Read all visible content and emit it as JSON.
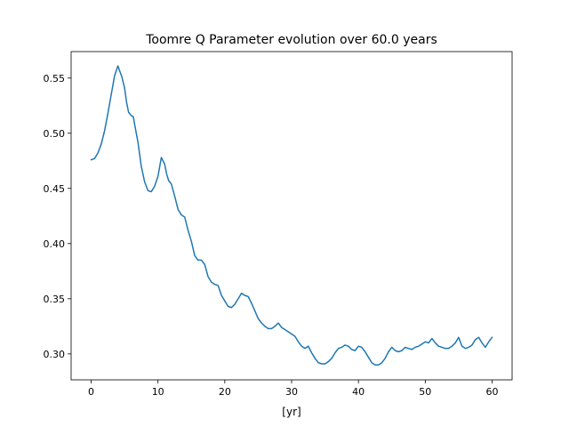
{
  "chart_data": {
    "type": "line",
    "title": "Toomre Q Parameter evolution over 60.0 years",
    "xlabel": "[yr]",
    "ylabel": "",
    "xlim": [
      -3.0,
      63.0
    ],
    "ylim": [
      0.2765,
      0.574
    ],
    "xticks": [
      0,
      10,
      20,
      30,
      40,
      50,
      60
    ],
    "yticks": [
      0.3,
      0.35,
      0.4,
      0.45,
      0.5,
      0.55
    ],
    "xtick_labels": [
      "0",
      "10",
      "20",
      "30",
      "40",
      "50",
      "60"
    ],
    "ytick_labels": [
      "0.30",
      "0.35",
      "0.40",
      "0.45",
      "0.50",
      "0.55"
    ],
    "grid": false,
    "legend": "none",
    "series_color": "#1f77b4",
    "series": [
      {
        "x": [
          0,
          0.5,
          1.0,
          1.5,
          2.0,
          2.5,
          3.0,
          3.5,
          4.0,
          4.3,
          4.6,
          5.0,
          5.3,
          5.6,
          6.0,
          6.3,
          6.6,
          7.0,
          7.5,
          8.0,
          8.5,
          9.0,
          9.5,
          10.0,
          10.5,
          11.0,
          11.3,
          11.6,
          12.0,
          12.5,
          13.0,
          13.5,
          14.0,
          14.5,
          15.0,
          15.5,
          16.0,
          16.5,
          17.0,
          17.5,
          18.0,
          18.5,
          19.0,
          19.5,
          20.0,
          20.5,
          21.0,
          21.5,
          22.0,
          22.5,
          23.0,
          23.5,
          24.0,
          24.5,
          25.0,
          25.5,
          26.0,
          26.5,
          27.0,
          27.5,
          28.0,
          28.5,
          29.0,
          29.5,
          30.0,
          30.5,
          31.0,
          31.5,
          32.0,
          32.5,
          33.0,
          33.5,
          34.0,
          34.5,
          35.0,
          35.5,
          36.0,
          36.5,
          37.0,
          37.5,
          38.0,
          38.5,
          39.0,
          39.5,
          40.0,
          40.5,
          41.0,
          41.5,
          42.0,
          42.5,
          43.0,
          43.5,
          44.0,
          44.5,
          45.0,
          45.5,
          46.0,
          46.5,
          47.0,
          47.5,
          48.0,
          48.5,
          49.0,
          49.5,
          50.0,
          50.5,
          51.0,
          51.5,
          52.0,
          52.5,
          53.0,
          53.5,
          54.0,
          54.5,
          55.0,
          55.5,
          56.0,
          56.5,
          57.0,
          57.5,
          58.0,
          58.5,
          59.0,
          59.5,
          60.0
        ],
        "values": [
          0.476,
          0.477,
          0.482,
          0.49,
          0.502,
          0.518,
          0.535,
          0.552,
          0.561,
          0.556,
          0.551,
          0.541,
          0.528,
          0.519,
          0.516,
          0.515,
          0.505,
          0.492,
          0.47,
          0.456,
          0.448,
          0.447,
          0.452,
          0.461,
          0.478,
          0.472,
          0.463,
          0.457,
          0.454,
          0.443,
          0.431,
          0.426,
          0.424,
          0.412,
          0.402,
          0.389,
          0.385,
          0.385,
          0.381,
          0.37,
          0.365,
          0.363,
          0.362,
          0.353,
          0.348,
          0.343,
          0.342,
          0.345,
          0.35,
          0.355,
          0.353,
          0.352,
          0.346,
          0.339,
          0.332,
          0.328,
          0.325,
          0.323,
          0.323,
          0.325,
          0.328,
          0.324,
          0.322,
          0.32,
          0.318,
          0.316,
          0.311,
          0.307,
          0.305,
          0.307,
          0.301,
          0.296,
          0.292,
          0.291,
          0.291,
          0.293,
          0.296,
          0.301,
          0.305,
          0.306,
          0.308,
          0.307,
          0.304,
          0.303,
          0.307,
          0.306,
          0.302,
          0.297,
          0.292,
          0.29,
          0.29,
          0.292,
          0.296,
          0.302,
          0.306,
          0.303,
          0.302,
          0.303,
          0.306,
          0.305,
          0.304,
          0.306,
          0.307,
          0.309,
          0.311,
          0.31,
          0.314,
          0.31,
          0.307,
          0.306,
          0.305,
          0.305,
          0.307,
          0.31,
          0.315,
          0.307,
          0.305,
          0.306,
          0.308,
          0.313,
          0.315,
          0.31,
          0.306,
          0.311,
          0.315
        ]
      }
    ]
  }
}
